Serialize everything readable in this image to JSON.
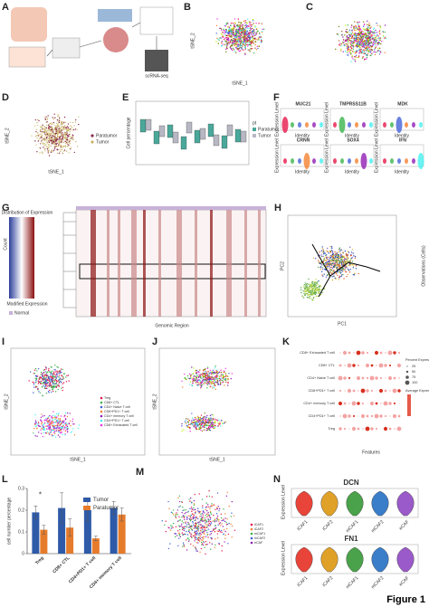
{
  "figure_label": "Figure 1",
  "panels": {
    "A": {
      "letter": "A",
      "labels": [
        "scRNA-seq"
      ]
    },
    "B": {
      "letter": "B",
      "x_label": "tSNE_1",
      "y_label": "tSNE_2"
    },
    "C": {
      "letter": "C"
    },
    "D": {
      "letter": "D",
      "x_label": "tSNE_1",
      "y_label": "tSNE_2",
      "legend": [
        "Paratumor",
        "Tumor"
      ]
    },
    "E": {
      "letter": "E",
      "y_label": "Cell percentage",
      "legend_title": "pt",
      "legend": [
        "Paratumor",
        "Tumor"
      ]
    },
    "F": {
      "letter": "F",
      "genes": [
        "MUC21",
        "TMPRSS11B",
        "MDK",
        "CRNN",
        "SOX4",
        "IFN"
      ],
      "y_label": "Expression Level",
      "x_label": "Identity"
    },
    "G": {
      "letter": "G",
      "title": "Distribution of Expression",
      "count_label": "Count",
      "scale_label": "Modified Expression",
      "legend": [
        "Normal"
      ],
      "x_label": "Genomic Region"
    },
    "H": {
      "letter": "H",
      "x_label": "PC1",
      "y_label": "PC2",
      "side_label": "Observations (Cells)"
    },
    "I": {
      "letter": "I",
      "x_label": "tSNE_1",
      "y_label": "tSNE_2",
      "clusters": [
        "Treg",
        "CD8+ CTL",
        "CD4+ Naive T cell",
        "CD8+PD1+ T cell",
        "CD4+ memory T cell",
        "CD4+PD1+ T cell",
        "CD8+ Exhausted T cell"
      ]
    },
    "J": {
      "letter": "J",
      "x_label": "tSNE_1",
      "y_label": "tSNE_2"
    },
    "K": {
      "letter": "K",
      "rows": [
        "CD8+ Exhausted T cell",
        "CD8+ CTL",
        "CD4+ Naive T cell",
        "CD8+PD1+ T cell",
        "CD4+ memory T cell",
        "CD4+PD1+ T cell",
        "Treg"
      ],
      "x_label": "Features",
      "size_title": "Percent Expressed",
      "size_ticks": [
        25,
        50,
        75,
        100
      ],
      "color_title": "Average Expression"
    },
    "L": {
      "letter": "L",
      "y_label": "cell number percentage",
      "categories": [
        "Treg",
        "CD8+ CTL",
        "CD4+PD1+ T cell",
        "CD4+ memory T cell"
      ],
      "series": [
        {
          "name": "Tumor",
          "color": "#2e5aa8",
          "values": [
            0.19,
            0.21,
            0.2,
            0.21
          ],
          "errors": [
            0.03,
            0.07,
            0.05,
            0.03
          ]
        },
        {
          "name": "Paratumor",
          "color": "#e57c2c",
          "values": [
            0.11,
            0.12,
            0.07,
            0.18
          ],
          "errors": [
            0.02,
            0.04,
            0.01,
            0.03
          ]
        }
      ],
      "ylim": [
        0,
        0.3
      ],
      "yticks": [
        0,
        0.1,
        0.2,
        0.3
      ],
      "annotation": "*"
    },
    "M": {
      "letter": "M",
      "legend": [
        "iCAF1",
        "iCAF2",
        "mCAF1",
        "mCAF2",
        "eCAF"
      ]
    },
    "N": {
      "letter": "N",
      "genes": [
        "DCN",
        "FN1"
      ],
      "y_label": "Expression Level",
      "categories": [
        "iCAF1",
        "iCAF2",
        "mCAF1",
        "mCAF2",
        "eCAF"
      ]
    }
  }
}
